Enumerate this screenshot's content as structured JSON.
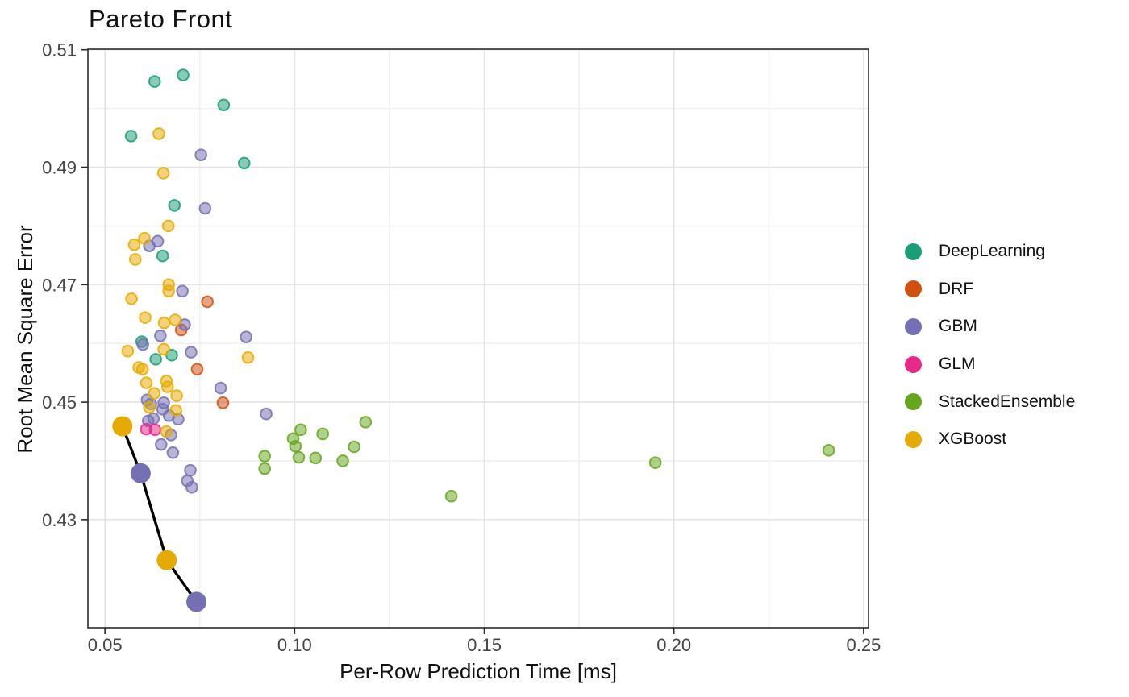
{
  "chart_data": {
    "type": "scatter",
    "title": "Pareto Front",
    "xlabel": "Per-Row Prediction Time [ms]",
    "ylabel": "Root Mean Square Error",
    "xlim": [
      0.0455,
      0.2513
    ],
    "ylim": [
      0.4116,
      0.5101
    ],
    "xticks": [
      0.05,
      0.1,
      0.15,
      0.2,
      0.25
    ],
    "xtick_labels": [
      "0.05",
      "0.10",
      "0.15",
      "0.20",
      "0.25"
    ],
    "yticks": [
      0.43,
      0.45,
      0.47,
      0.49,
      0.51
    ],
    "ytick_labels": [
      "0.43",
      "0.45",
      "0.47",
      "0.49",
      "0.51"
    ],
    "xticks_minor": [
      0.075,
      0.125,
      0.175,
      0.225
    ],
    "yticks_minor": [
      0.44,
      0.46,
      0.48,
      0.5
    ],
    "grid": true,
    "legend_position": "right",
    "series": [
      {
        "name": "DeepLearning",
        "color": "#1B9E77",
        "points": [
          [
            0.0631,
            0.5046
          ],
          [
            0.0706,
            0.5057
          ],
          [
            0.0813,
            0.5006
          ],
          [
            0.0569,
            0.4953
          ],
          [
            0.0867,
            0.4907
          ],
          [
            0.0683,
            0.4835
          ],
          [
            0.0652,
            0.4749
          ],
          [
            0.0597,
            0.4603
          ],
          [
            0.0676,
            0.458
          ],
          [
            0.0634,
            0.4573
          ]
        ]
      },
      {
        "name": "DRF",
        "color": "#D1500F",
        "points": [
          [
            0.077,
            0.4671
          ],
          [
            0.0701,
            0.4623
          ],
          [
            0.0743,
            0.4556
          ],
          [
            0.0811,
            0.4499
          ]
        ]
      },
      {
        "name": "GBM",
        "color": "#7570B3",
        "points": [
          [
            0.0753,
            0.4921
          ],
          [
            0.0764,
            0.483
          ],
          [
            0.0639,
            0.4774
          ],
          [
            0.0617,
            0.4766
          ],
          [
            0.0704,
            0.4689
          ],
          [
            0.071,
            0.4632
          ],
          [
            0.0646,
            0.4613
          ],
          [
            0.0872,
            0.4611
          ],
          [
            0.06,
            0.4598
          ],
          [
            0.0727,
            0.4585
          ],
          [
            0.0805,
            0.4524
          ],
          [
            0.0925,
            0.448
          ],
          [
            0.0611,
            0.4504
          ],
          [
            0.0621,
            0.4497
          ],
          [
            0.0655,
            0.4499
          ],
          [
            0.0652,
            0.4488
          ],
          [
            0.0693,
            0.4471
          ],
          [
            0.0669,
            0.4477
          ],
          [
            0.0628,
            0.4472
          ],
          [
            0.0614,
            0.4468
          ],
          [
            0.0674,
            0.4444
          ],
          [
            0.0648,
            0.4428
          ],
          [
            0.0679,
            0.4414
          ],
          [
            0.0725,
            0.4384
          ],
          [
            0.0717,
            0.4366
          ],
          [
            0.0729,
            0.4355
          ]
        ]
      },
      {
        "name": "GLM",
        "color": "#E7298A",
        "points": [
          [
            0.0609,
            0.4454
          ],
          [
            0.0632,
            0.4453
          ]
        ]
      },
      {
        "name": "StackedEnsemble",
        "color": "#66A61E",
        "points": [
          [
            0.1187,
            0.4466
          ],
          [
            0.1016,
            0.4453
          ],
          [
            0.1074,
            0.4446
          ],
          [
            0.0996,
            0.4438
          ],
          [
            0.1002,
            0.4425
          ],
          [
            0.1157,
            0.4424
          ],
          [
            0.0921,
            0.4408
          ],
          [
            0.1011,
            0.4406
          ],
          [
            0.1055,
            0.4405
          ],
          [
            0.1127,
            0.44
          ],
          [
            0.0921,
            0.4387
          ],
          [
            0.1413,
            0.434
          ],
          [
            0.1951,
            0.4397
          ],
          [
            0.2408,
            0.4418
          ]
        ]
      },
      {
        "name": "XGBoost",
        "color": "#E6AB02",
        "points": [
          [
            0.0642,
            0.4957
          ],
          [
            0.0654,
            0.489
          ],
          [
            0.0667,
            0.48
          ],
          [
            0.0604,
            0.4779
          ],
          [
            0.0577,
            0.4768
          ],
          [
            0.058,
            0.4743
          ],
          [
            0.0668,
            0.47
          ],
          [
            0.0668,
            0.4689
          ],
          [
            0.057,
            0.4676
          ],
          [
            0.0606,
            0.4644
          ],
          [
            0.0685,
            0.464
          ],
          [
            0.0656,
            0.4635
          ],
          [
            0.056,
            0.4587
          ],
          [
            0.0655,
            0.459
          ],
          [
            0.0877,
            0.4576
          ],
          [
            0.0589,
            0.4559
          ],
          [
            0.0599,
            0.4556
          ],
          [
            0.0609,
            0.4533
          ],
          [
            0.0662,
            0.4536
          ],
          [
            0.0665,
            0.4526
          ],
          [
            0.063,
            0.4515
          ],
          [
            0.0689,
            0.4511
          ],
          [
            0.0617,
            0.4491
          ],
          [
            0.0687,
            0.4486
          ],
          [
            0.0662,
            0.445
          ]
        ]
      }
    ],
    "pareto_front": {
      "line_color": "#000000",
      "points": [
        {
          "x": 0.0546,
          "y": 0.4459,
          "series": "XGBoost"
        },
        {
          "x": 0.0594,
          "y": 0.4379,
          "series": "GBM"
        },
        {
          "x": 0.0663,
          "y": 0.4231,
          "series": "XGBoost"
        },
        {
          "x": 0.0741,
          "y": 0.416,
          "series": "GBM"
        }
      ]
    }
  }
}
